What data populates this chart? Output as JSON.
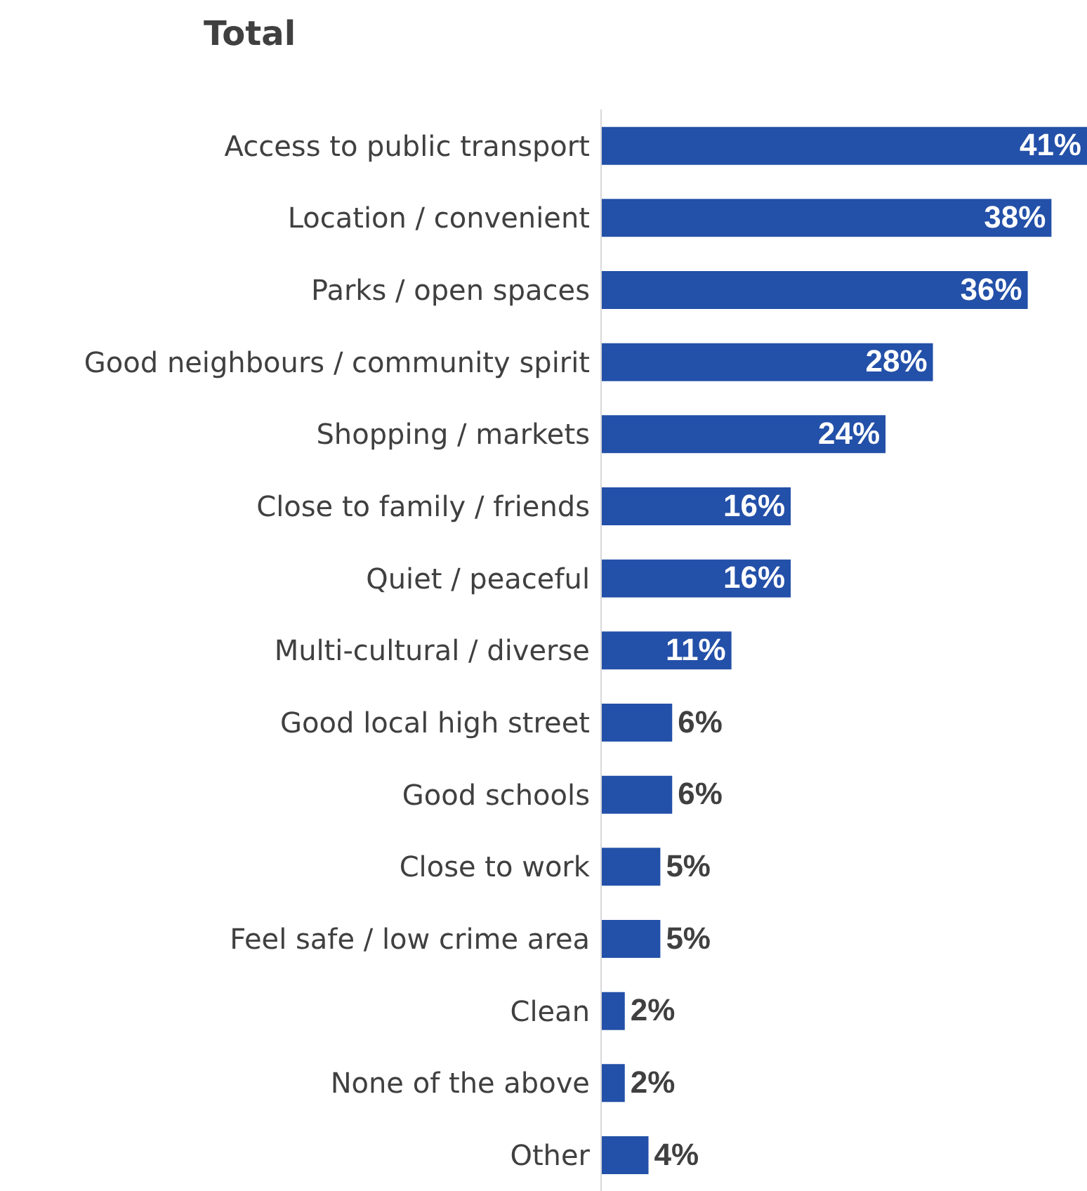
{
  "chart_data": {
    "type": "bar",
    "orientation": "horizontal",
    "title": "Total",
    "categories": [
      "Access to public transport",
      "Location / convenient",
      "Parks / open spaces",
      "Good neighbours / community spirit",
      "Shopping / markets",
      "Close to family / friends",
      "Quiet / peaceful",
      "Multi-cultural / diverse",
      "Good local high street",
      "Good schools",
      "Close to work",
      "Feel safe / low crime area",
      "Clean",
      "None of the above",
      "Other"
    ],
    "values": [
      41,
      38,
      36,
      28,
      24,
      16,
      16,
      11,
      6,
      6,
      5,
      5,
      2,
      2,
      4
    ],
    "value_labels": [
      "41%",
      "38%",
      "36%",
      "28%",
      "24%",
      "16%",
      "16%",
      "11%",
      "6%",
      "6%",
      "5%",
      "5%",
      "2%",
      "2%",
      "4%"
    ],
    "color": "#2350a8",
    "grid": false
  }
}
